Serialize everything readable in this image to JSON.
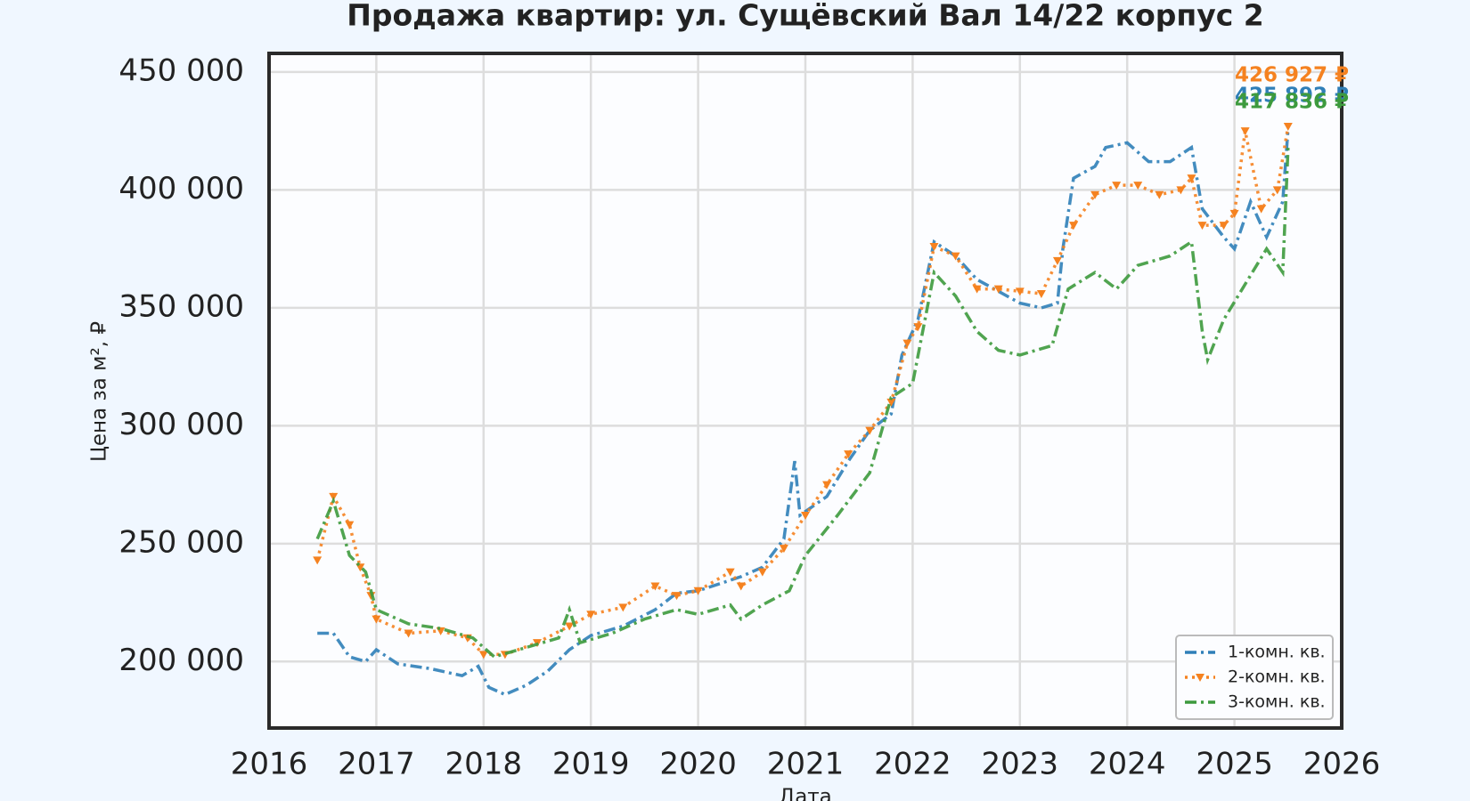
{
  "chart_data": {
    "type": "line",
    "title": "Продажа квартир: ул. Сущёвский Вал 14/22 корпус 2",
    "xlabel": "Дата",
    "ylabel": "Цена за м², ₽",
    "xlim": [
      2016,
      2026
    ],
    "xticks": [
      2016,
      2017,
      2018,
      2019,
      2020,
      2021,
      2022,
      2023,
      2024,
      2025,
      2026
    ],
    "ylim": [
      171800,
      457900
    ],
    "yticks": [
      {
        "value": 200000,
        "label": "200 000"
      },
      {
        "value": 250000,
        "label": "250 000"
      },
      {
        "value": 300000,
        "label": "300 000"
      },
      {
        "value": 350000,
        "label": "350 000"
      },
      {
        "value": 400000,
        "label": "400 000"
      },
      {
        "value": 450000,
        "label": "450 000"
      }
    ],
    "grid": true,
    "legend": "lower right",
    "series": [
      {
        "name": "1-комн. кв.",
        "color": "#2f7fb8",
        "style": "dashdot",
        "end_label": "425 892 ₽",
        "x": [
          2016.45,
          2016.6,
          2016.75,
          2016.9,
          2017.0,
          2017.2,
          2017.5,
          2017.8,
          2017.95,
          2018.05,
          2018.2,
          2018.4,
          2018.6,
          2018.8,
          2019.0,
          2019.3,
          2019.6,
          2019.8,
          2020.0,
          2020.2,
          2020.4,
          2020.6,
          2020.8,
          2020.9,
          2020.95,
          2021.2,
          2021.4,
          2021.6,
          2021.8,
          2021.9,
          2022.05,
          2022.2,
          2022.4,
          2022.6,
          2022.8,
          2023.0,
          2023.2,
          2023.35,
          2023.4,
          2023.5,
          2023.7,
          2023.8,
          2024.0,
          2024.2,
          2024.4,
          2024.6,
          2024.7,
          2024.9,
          2025.0,
          2025.15,
          2025.3,
          2025.45,
          2025.5
        ],
        "values": [
          212000,
          212000,
          202000,
          200000,
          205000,
          199000,
          197000,
          194000,
          198000,
          189000,
          186000,
          190000,
          196000,
          205000,
          211000,
          215000,
          222000,
          229000,
          230000,
          233000,
          236000,
          240000,
          252000,
          285000,
          262000,
          270000,
          285000,
          298000,
          305000,
          330000,
          345000,
          378000,
          372000,
          362000,
          357000,
          352000,
          350000,
          352000,
          375000,
          405000,
          410000,
          418000,
          420000,
          412000,
          412000,
          418000,
          392000,
          380000,
          375000,
          395000,
          380000,
          395000,
          425892
        ]
      },
      {
        "name": "2-комн. кв.",
        "color": "#f58220",
        "style": "dotted",
        "marker": "triangle",
        "end_label": "426 927 ₽",
        "x": [
          2016.45,
          2016.6,
          2016.75,
          2016.85,
          2016.95,
          2017.0,
          2017.3,
          2017.6,
          2017.85,
          2018.0,
          2018.2,
          2018.5,
          2018.8,
          2019.0,
          2019.3,
          2019.6,
          2019.8,
          2020.0,
          2020.3,
          2020.4,
          2020.6,
          2020.8,
          2021.0,
          2021.2,
          2021.4,
          2021.6,
          2021.8,
          2021.95,
          2022.05,
          2022.2,
          2022.4,
          2022.6,
          2022.8,
          2023.0,
          2023.2,
          2023.35,
          2023.5,
          2023.7,
          2023.9,
          2024.1,
          2024.3,
          2024.5,
          2024.6,
          2024.7,
          2024.9,
          2025.0,
          2025.1,
          2025.25,
          2025.4,
          2025.5
        ],
        "values": [
          243000,
          270000,
          258000,
          240000,
          228000,
          218000,
          212000,
          213000,
          210000,
          203000,
          203000,
          208000,
          215000,
          220000,
          223000,
          232000,
          228000,
          230000,
          238000,
          232000,
          238000,
          248000,
          262000,
          275000,
          288000,
          298000,
          310000,
          335000,
          342000,
          376000,
          372000,
          358000,
          358000,
          357000,
          356000,
          370000,
          385000,
          398000,
          402000,
          402000,
          398000,
          400000,
          405000,
          385000,
          385000,
          390000,
          425000,
          392000,
          400000,
          426927
        ]
      },
      {
        "name": "3-комн. кв.",
        "color": "#3d9a3d",
        "style": "dashdot",
        "end_label": "417 836 ₽",
        "x": [
          2016.45,
          2016.6,
          2016.75,
          2016.9,
          2017.0,
          2017.3,
          2017.6,
          2017.9,
          2018.1,
          2018.4,
          2018.7,
          2018.8,
          2018.9,
          2019.2,
          2019.5,
          2019.8,
          2020.0,
          2020.3,
          2020.4,
          2020.6,
          2020.85,
          2021.0,
          2021.3,
          2021.6,
          2021.8,
          2022.0,
          2022.2,
          2022.4,
          2022.6,
          2022.8,
          2023.0,
          2023.3,
          2023.45,
          2023.7,
          2023.9,
          2024.1,
          2024.4,
          2024.6,
          2024.7,
          2024.75,
          2024.9,
          2025.1,
          2025.3,
          2025.45,
          2025.5
        ],
        "values": [
          252000,
          268000,
          245000,
          238000,
          222000,
          216000,
          214000,
          210000,
          202000,
          206000,
          210000,
          222000,
          208000,
          212000,
          218000,
          222000,
          220000,
          224000,
          218000,
          224000,
          230000,
          245000,
          262000,
          280000,
          312000,
          318000,
          365000,
          355000,
          340000,
          332000,
          330000,
          334000,
          358000,
          365000,
          358000,
          368000,
          372000,
          378000,
          340000,
          328000,
          345000,
          360000,
          375000,
          365000,
          417836
        ]
      }
    ]
  }
}
